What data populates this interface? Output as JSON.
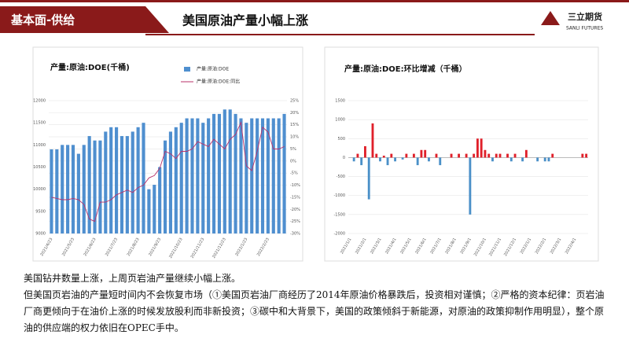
{
  "header": {
    "section": "基本面-供给",
    "title": "美国原油产量小幅上涨",
    "logo": "三立期货",
    "logo_sub": "SANLI FUTURES"
  },
  "body": [
    "美国钻井数量上涨，上周页岩油产量继续小幅上涨。",
    "但美国页岩油的产量短时间内不会恢复市场（①美国页岩油厂商经历了2014年原油价格暴跌后，投资相对谨慎；②严格的资本纪律：页岩油厂商更倾向于在油价上涨的时候发放股利而非新投资；③碳中和大背景下，美国的政策倾斜于新能源，对原油的政策抑制作用明显），整个原油的供应端的权力依旧在OPEC手中。"
  ],
  "chart_data": [
    {
      "type": "bar_line",
      "title": "产量:原油:DOE(千桶)",
      "categories": [
        "2021/4/23",
        null,
        null,
        null,
        "2021/5/23",
        null,
        null,
        null,
        "2021/6/23",
        null,
        null,
        null,
        "2021/7/23",
        null,
        null,
        null,
        "2021/8/23",
        null,
        null,
        null,
        "2021/9/23",
        null,
        null,
        null,
        "2021/10/23",
        null,
        null,
        null,
        "2021/11/23",
        null,
        null,
        null,
        "2021/12/23",
        null,
        null,
        null,
        "2022/1/23",
        null,
        null,
        null,
        "2022/2/23",
        null,
        null,
        null
      ],
      "series": [
        {
          "name": "产量:原油:DOE",
          "color": "#4f8fcf",
          "values": [
            10900,
            10900,
            11000,
            11000,
            11000,
            10800,
            11000,
            11200,
            11100,
            11100,
            11300,
            11400,
            11400,
            11200,
            11200,
            11300,
            11400,
            11500,
            10000,
            10100,
            10500,
            11100,
            11300,
            11400,
            11500,
            11600,
            11600,
            11600,
            11500,
            11600,
            11700,
            11700,
            11800,
            11800,
            11700,
            11600,
            11500,
            11600,
            11600,
            11600,
            11600,
            11600,
            11600,
            11700
          ]
        },
        {
          "name": "产量:原油:DOE:同比",
          "color": "#b8326a",
          "axis": "y2",
          "values": [
            -15,
            -15.5,
            -16,
            -16,
            -15.5,
            -16,
            -18,
            -24,
            -25,
            -17,
            -17,
            -16,
            -14,
            -13,
            -12,
            -13,
            -11,
            -10,
            -7,
            -6,
            -3,
            4,
            3,
            1,
            4,
            4,
            5,
            8,
            7,
            6,
            9,
            7,
            5,
            9,
            11,
            16,
            -2,
            -4,
            4,
            14,
            12,
            5,
            5,
            6
          ]
        }
      ],
      "ylim": [
        9000,
        12000
      ],
      "yticks": [
        9000,
        9500,
        10000,
        10500,
        11000,
        11500,
        12000
      ],
      "y2lim": [
        -30,
        25
      ],
      "y2ticks": [
        {
          "value": 25,
          "label": "25%"
        },
        {
          "value": 20,
          "label": "20%"
        },
        {
          "value": 15,
          "label": "15%"
        },
        {
          "value": 10,
          "label": "10%"
        },
        {
          "value": 5,
          "label": "5%"
        },
        {
          "value": 0,
          "label": "0%"
        },
        {
          "value": -5,
          "label": "-5%"
        },
        {
          "value": -10,
          "label": "-10%"
        },
        {
          "value": -15,
          "label": "-15%"
        },
        {
          "value": -20,
          "label": "-20%"
        },
        {
          "value": -25,
          "label": "-25%"
        },
        {
          "value": -30,
          "label": "-30%"
        }
      ],
      "grid": true,
      "legend": "top"
    },
    {
      "type": "bar",
      "title": "产量:原油:DOE:环比增减（千桶）",
      "categories": [
        "2021/1/1",
        null,
        null,
        null,
        "2021/2/1",
        null,
        null,
        null,
        "2021/3/1",
        null,
        null,
        null,
        "2021/4/1",
        null,
        null,
        null,
        "2021/5/1",
        null,
        null,
        null,
        "2021/6/1",
        null,
        null,
        null,
        "2021/7/1",
        null,
        null,
        null,
        "2021/8/1",
        null,
        null,
        null,
        "2021/9/1",
        null,
        null,
        null,
        "2021/10/1",
        null,
        null,
        null,
        "2021/11/1",
        null,
        null,
        null,
        "2021/12/1",
        null,
        null,
        null,
        "2022/1/1",
        null,
        null,
        null,
        "2022/2/1",
        null,
        null,
        null,
        "2022/3/1",
        null,
        null,
        null,
        "2022/4/1",
        null,
        null,
        null
      ],
      "values": [
        0,
        -100,
        100,
        -200,
        300,
        -1100,
        900,
        100,
        -100,
        50,
        -200,
        100,
        -100,
        0,
        -50,
        100,
        0,
        100,
        -200,
        200,
        200,
        -100,
        0,
        100,
        -200,
        0,
        0,
        100,
        0,
        100,
        0,
        100,
        -1500,
        100,
        500,
        500,
        200,
        100,
        -100,
        100,
        100,
        0,
        100,
        -100,
        100,
        0,
        -100,
        200,
        0,
        0,
        -100,
        0,
        -100,
        -100,
        100,
        0,
        0,
        0,
        0,
        0,
        0,
        0,
        100,
        100
      ],
      "color": "#e0202a",
      "negative_color": "#4a90c8",
      "ylim": [
        -2000,
        1500
      ],
      "yticks": [
        -2000,
        -1500,
        -1000,
        -500,
        0,
        500,
        1000,
        1500
      ],
      "grid": true
    }
  ]
}
